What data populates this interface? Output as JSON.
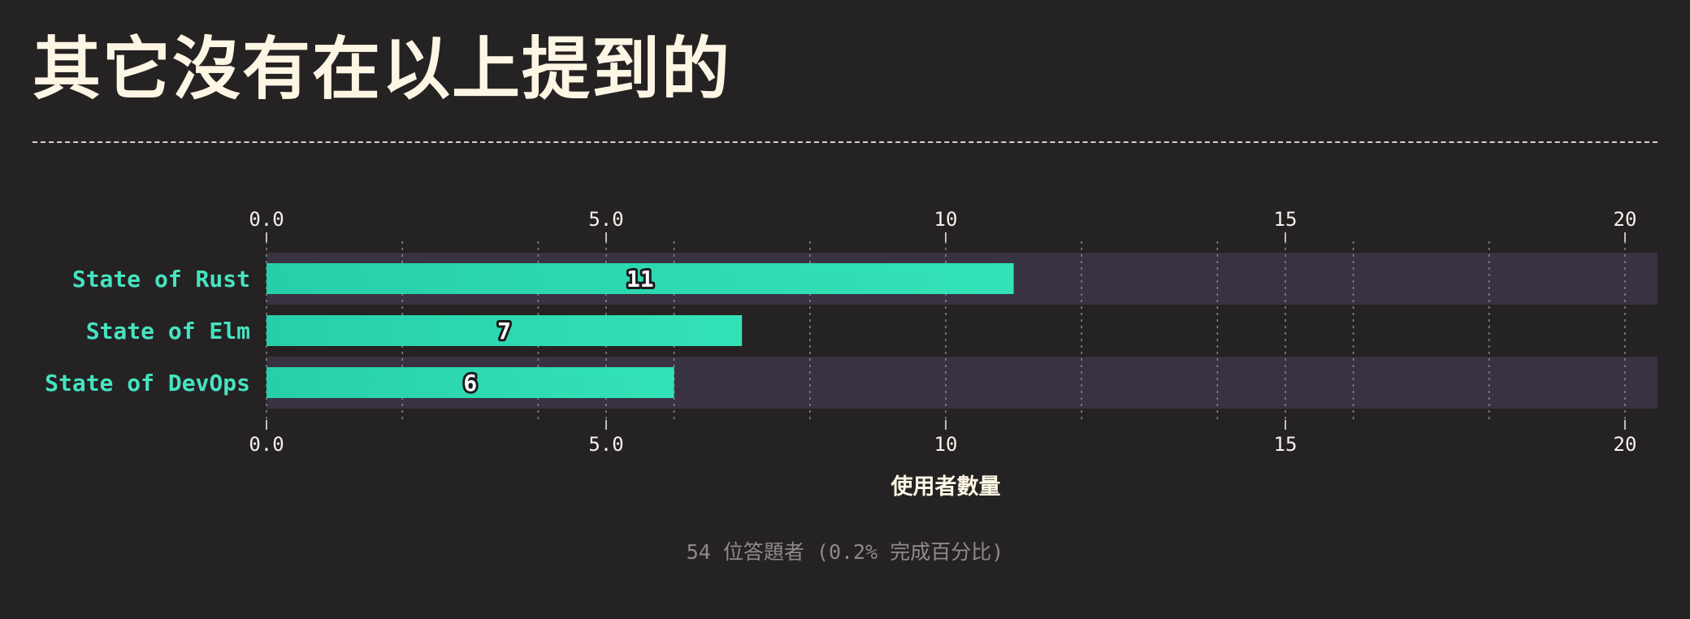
{
  "page": {
    "title": "其它沒有在以上提到的"
  },
  "chart_data": {
    "type": "bar",
    "orientation": "horizontal",
    "categories": [
      "State of Rust",
      "State of Elm",
      "State of DevOps"
    ],
    "values": [
      11,
      7,
      6
    ],
    "value_labels": [
      "11",
      "7",
      "6"
    ],
    "xlabel": "使用者數量",
    "xlim": [
      0,
      20.5
    ],
    "ticks": [
      0,
      5,
      10,
      15,
      20
    ],
    "tick_labels": [
      "0.0",
      "5.0",
      "10",
      "15",
      "20"
    ],
    "minor_gridlines": [
      2,
      4,
      6,
      8,
      12,
      14,
      16,
      18
    ],
    "grid": true,
    "axis_position": "top-and-bottom",
    "colors": {
      "bar_start": "#27ceaa",
      "bar_end": "#33e3b8",
      "category_label": "#45e4c0",
      "band": "#393241",
      "tick": "#f4f0ea",
      "grid": "#8a8590"
    }
  },
  "footer": {
    "note": "54 位答題者 (0.2% 完成百分比)"
  }
}
